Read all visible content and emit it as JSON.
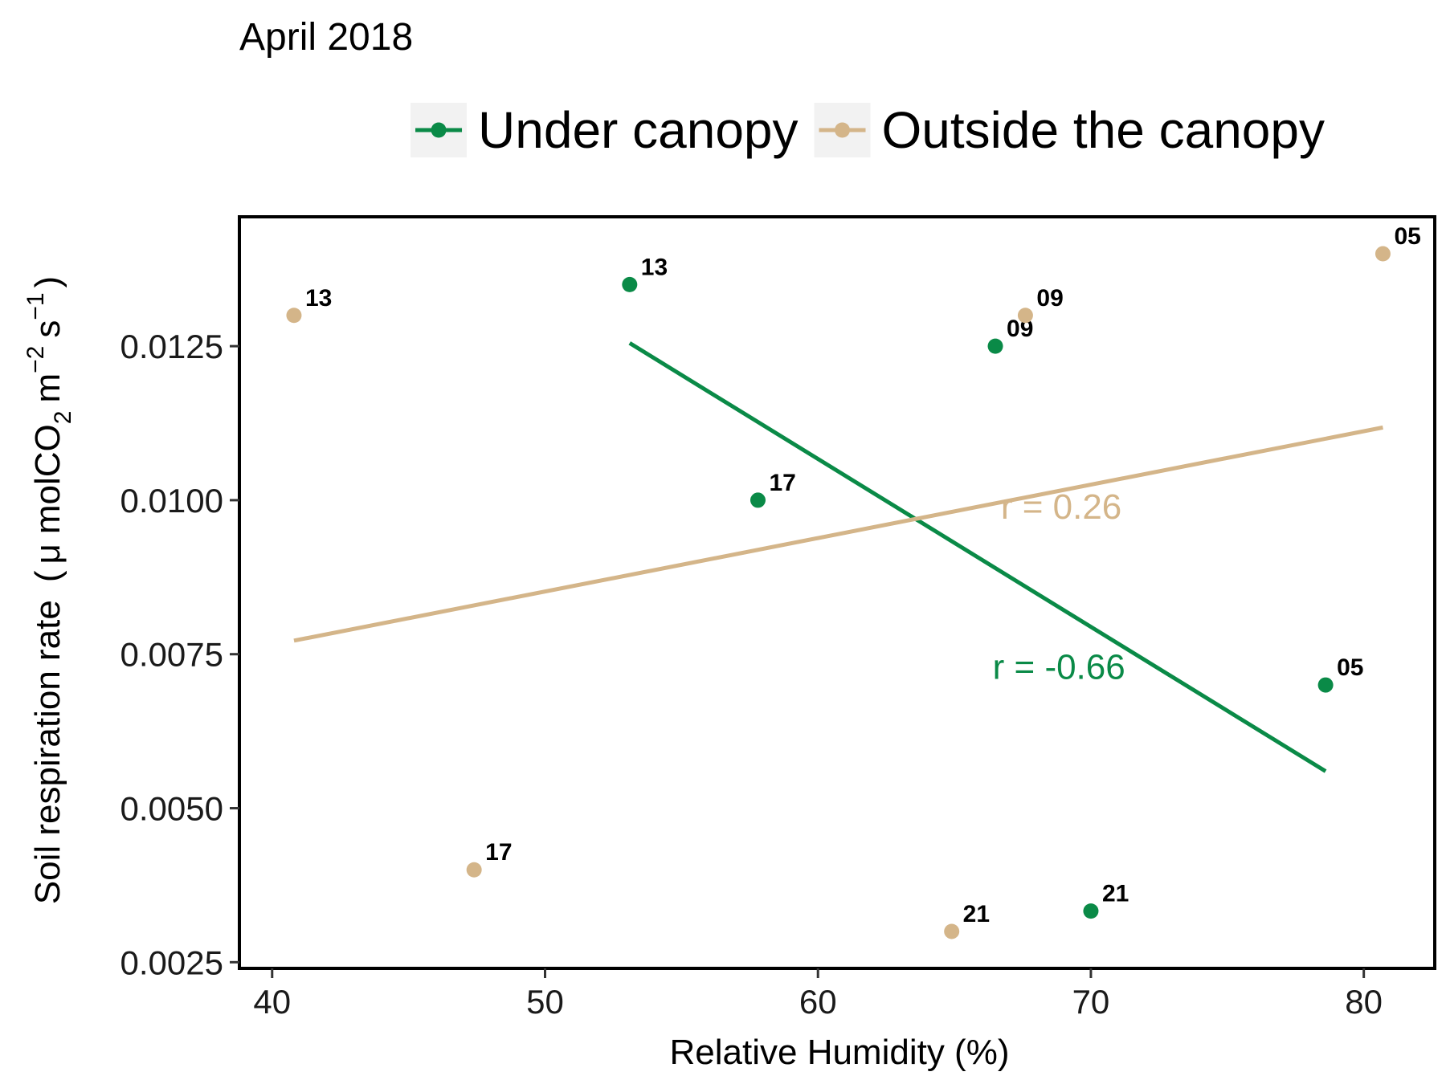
{
  "chart_data": {
    "type": "scatter",
    "title": "April 2018",
    "xlabel": "Relative Humidity (%)",
    "ylabel": {
      "main": "Soil respiration rate",
      "mu": "μ",
      "mol": "molCO",
      "sub2": "2",
      "m": "m",
      "exp_m": "−2",
      "s": "s",
      "exp_s": "−1",
      "open": "(",
      "close": ")"
    },
    "xlim": [
      38.8,
      82.6
    ],
    "ylim": [
      0.0024,
      0.0146
    ],
    "x_ticks": [
      40,
      50,
      60,
      70,
      80
    ],
    "y_ticks": [
      0.0025,
      0.005,
      0.0075,
      0.01,
      0.0125
    ],
    "y_tick_labels": [
      "0.0025",
      "0.0050",
      "0.0075",
      "0.0100",
      "0.0125"
    ],
    "legend": {
      "position": "top"
    },
    "series": [
      {
        "name": "Under canopy",
        "color": "#0a8a47",
        "points": [
          {
            "x": 53.1,
            "y": 0.0135,
            "label": "13"
          },
          {
            "x": 66.5,
            "y": 0.0125,
            "label": "09"
          },
          {
            "x": 57.8,
            "y": 0.01,
            "label": "17"
          },
          {
            "x": 78.6,
            "y": 0.007,
            "label": "05"
          },
          {
            "x": 70.0,
            "y": 0.00333,
            "label": "21"
          }
        ],
        "fit": {
          "x1": 53.1,
          "y1": 0.01255,
          "x2": 78.6,
          "y2": 0.0056
        },
        "r_label": "r = -0.66",
        "r_pos": {
          "x": 66.4,
          "y": 0.0071
        }
      },
      {
        "name": "Outside the canopy",
        "color": "#d4b589",
        "points": [
          {
            "x": 40.8,
            "y": 0.013,
            "label": "13"
          },
          {
            "x": 67.6,
            "y": 0.013,
            "label": "09"
          },
          {
            "x": 80.7,
            "y": 0.014,
            "label": "05"
          },
          {
            "x": 47.4,
            "y": 0.004,
            "label": "17"
          },
          {
            "x": 64.9,
            "y": 0.003,
            "label": "21"
          }
        ],
        "fit": {
          "x1": 40.8,
          "y1": 0.00772,
          "x2": 80.7,
          "y2": 0.01118
        },
        "r_label": "r = 0.26",
        "r_pos": {
          "x": 66.7,
          "y": 0.0097
        }
      }
    ]
  }
}
